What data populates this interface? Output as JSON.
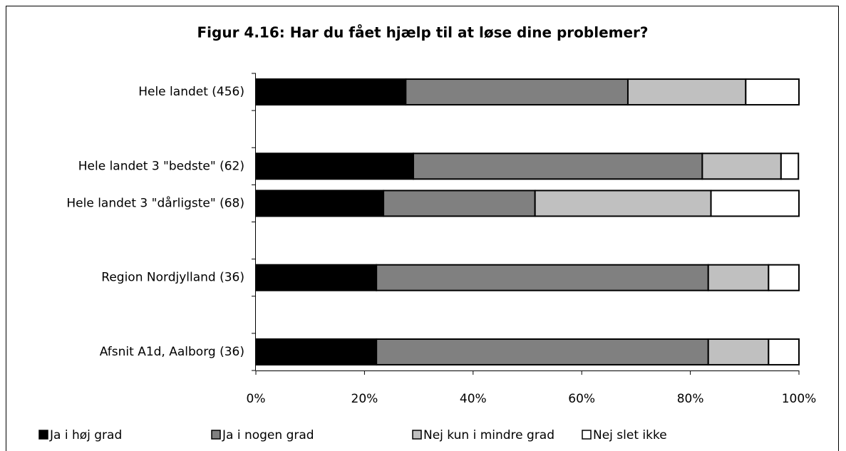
{
  "chart_data": {
    "type": "bar",
    "orientation": "horizontal",
    "stacked": true,
    "title": "Figur 4.16: Har du fået hjælp til at løse dine problemer?",
    "categories": [
      "Hele landet  (456)",
      null,
      "Hele landet 3 \"bedste\" (62)",
      "Hele landet 3 \"dårligste\" (68)",
      null,
      "Region Nordjylland (36)",
      null,
      "Afsnit A1d, Aalborg (36)"
    ],
    "series": [
      {
        "name": "Ja i høj grad",
        "color": "#000000",
        "values": [
          27.6,
          null,
          29.0,
          23.5,
          null,
          22.2,
          null,
          22.2
        ]
      },
      {
        "name": "Ja i nogen grad",
        "color": "#808080",
        "values": [
          40.9,
          null,
          53.2,
          27.9,
          null,
          61.1,
          null,
          61.1
        ]
      },
      {
        "name": "Nej kun i mindre grad",
        "color": "#c0c0c0",
        "values": [
          21.7,
          null,
          14.5,
          32.4,
          null,
          11.1,
          null,
          11.1
        ]
      },
      {
        "name": "Nej slet ikke",
        "color": "#ffffff",
        "values": [
          9.8,
          null,
          3.2,
          16.2,
          null,
          5.6,
          null,
          5.6
        ]
      }
    ],
    "xlim": [
      0,
      100
    ],
    "xticks": [
      {
        "value": 0,
        "label": "0%"
      },
      {
        "value": 20,
        "label": "20%"
      },
      {
        "value": 40,
        "label": "40%"
      },
      {
        "value": 60,
        "label": "60%"
      },
      {
        "value": 80,
        "label": "80%"
      },
      {
        "value": 100,
        "label": "100%"
      }
    ],
    "legend": "bottom"
  }
}
